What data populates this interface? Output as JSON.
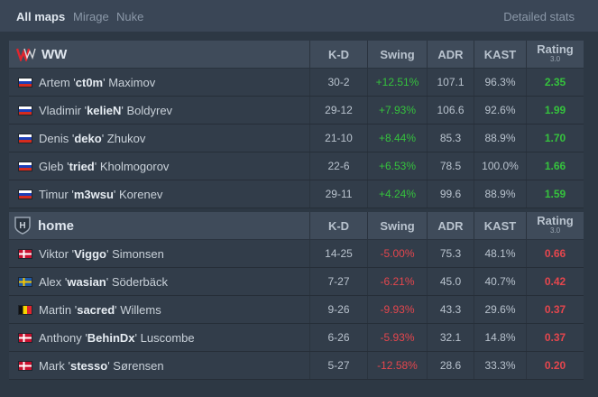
{
  "tabs": [
    "All maps",
    "Mirage",
    "Nuke"
  ],
  "detailed_stats": "Detailed stats",
  "columns": {
    "kd": "K-D",
    "swing": "Swing",
    "adr": "ADR",
    "kast": "KAST",
    "rating": "Rating",
    "rating_version": "3.0"
  },
  "colors": {
    "positive": "#35c23d",
    "negative": "#e5464d",
    "ww_logo": "#e0262f"
  },
  "teams": [
    {
      "name": "WW",
      "logo_icon": "ww-logo-icon",
      "players": [
        {
          "flag": "russia-flag-icon",
          "first": "Artem '",
          "nick": "ct0m",
          "last": "' Maximov",
          "kd": "30-2",
          "swing": "+12.51%",
          "adr": "107.1",
          "kast": "96.3%",
          "rating": "2.35"
        },
        {
          "flag": "russia-flag-icon",
          "first": "Vladimir '",
          "nick": "kelieN",
          "last": "' Boldyrev",
          "kd": "29-12",
          "swing": "+7.93%",
          "adr": "106.6",
          "kast": "92.6%",
          "rating": "1.99"
        },
        {
          "flag": "russia-flag-icon",
          "first": "Denis '",
          "nick": "deko",
          "last": "' Zhukov",
          "kd": "21-10",
          "swing": "+8.44%",
          "adr": "85.3",
          "kast": "88.9%",
          "rating": "1.70"
        },
        {
          "flag": "russia-flag-icon",
          "first": "Gleb '",
          "nick": "tried",
          "last": "' Kholmogorov",
          "kd": "22-6",
          "swing": "+6.53%",
          "adr": "78.5",
          "kast": "100.0%",
          "rating": "1.66"
        },
        {
          "flag": "russia-flag-icon",
          "first": "Timur '",
          "nick": "m3wsu",
          "last": "' Korenev",
          "kd": "29-11",
          "swing": "+4.24%",
          "adr": "99.6",
          "kast": "88.9%",
          "rating": "1.59"
        }
      ]
    },
    {
      "name": "home",
      "logo_icon": "home-shield-icon",
      "logo_letter": "H",
      "players": [
        {
          "flag": "denmark-flag-icon",
          "first": "Viktor '",
          "nick": "Viggo",
          "last": "' Simonsen",
          "kd": "14-25",
          "swing": "-5.00%",
          "adr": "75.3",
          "kast": "48.1%",
          "rating": "0.66"
        },
        {
          "flag": "sweden-flag-icon",
          "first": "Alex '",
          "nick": "wasian",
          "last": "' Söderbäck",
          "kd": "7-27",
          "swing": "-6.21%",
          "adr": "45.0",
          "kast": "40.7%",
          "rating": "0.42"
        },
        {
          "flag": "belgium-flag-icon",
          "first": "Martin '",
          "nick": "sacred",
          "last": "' Willems",
          "kd": "9-26",
          "swing": "-9.93%",
          "adr": "43.3",
          "kast": "29.6%",
          "rating": "0.37"
        },
        {
          "flag": "denmark-flag-icon",
          "first": "Anthony '",
          "nick": "BehinDx",
          "last": "' Luscombe",
          "kd": "6-26",
          "swing": "-5.93%",
          "adr": "32.1",
          "kast": "14.8%",
          "rating": "0.37"
        },
        {
          "flag": "denmark-flag-icon",
          "first": "Mark '",
          "nick": "stesso",
          "last": "' Sørensen",
          "kd": "5-27",
          "swing": "-12.58%",
          "adr": "28.6",
          "kast": "33.3%",
          "rating": "0.20"
        }
      ]
    }
  ]
}
